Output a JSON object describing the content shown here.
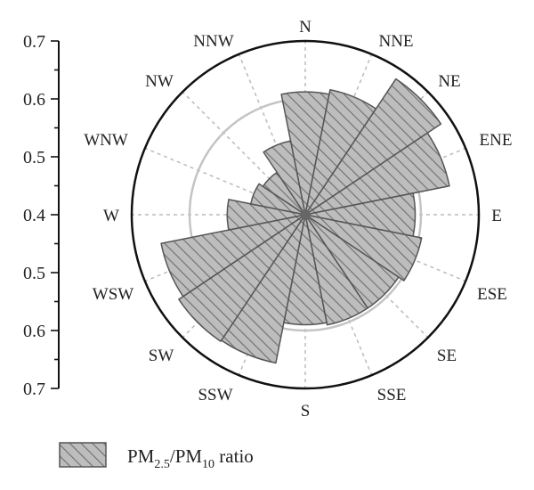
{
  "chart_data": {
    "type": "polar-bar",
    "directions": [
      "N",
      "NNE",
      "NE",
      "ENE",
      "E",
      "ESE",
      "SE",
      "SSE",
      "S",
      "SSW",
      "SW",
      "WSW",
      "W",
      "WNW",
      "NW",
      "NNW"
    ],
    "values": [
      0.612,
      0.62,
      0.682,
      0.654,
      0.59,
      0.605,
      0.594,
      0.594,
      0.59,
      0.661,
      0.663,
      0.654,
      0.535,
      0.496,
      0.488,
      0.53
    ],
    "radial_axis": {
      "tick_labels": [
        "0.7",
        "0.6",
        "0.5",
        "0.4",
        "0.5",
        "0.6",
        "0.7"
      ],
      "range": [
        0.4,
        0.7
      ],
      "reference_circle": 0.6
    },
    "grid": true,
    "legend": {
      "position": "bottom-left",
      "label_main": "PM",
      "sub1": "2.5",
      "sep": "/PM",
      "sub2": "10",
      "label_tail": " ratio"
    },
    "colors": {
      "bar_fill": "#bdbdbd",
      "bar_stroke": "#555555",
      "hatch": "#777777",
      "grid": "#bbbbbb",
      "ref_circle": "#c4c4c4",
      "outer_circle": "#111111"
    }
  }
}
